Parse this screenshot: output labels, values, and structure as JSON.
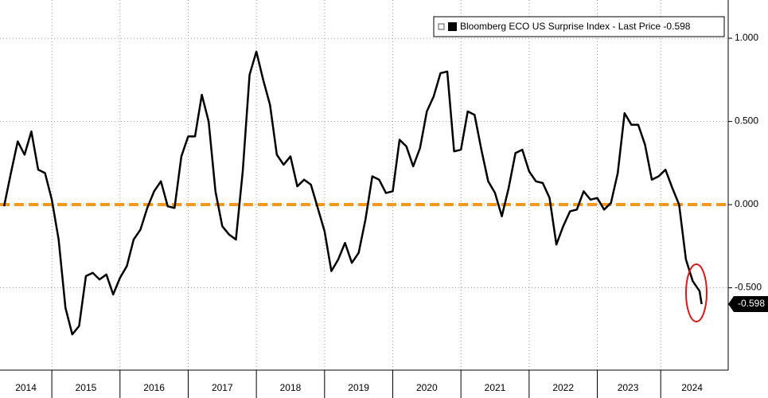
{
  "chart_data": {
    "type": "line",
    "x": [
      2014.3,
      2014.4,
      2014.5,
      2014.6,
      2014.7,
      2014.8,
      2014.9,
      2015.0,
      2015.1,
      2015.2,
      2015.3,
      2015.4,
      2015.5,
      2015.6,
      2015.7,
      2015.8,
      2015.9,
      2016.0,
      2016.1,
      2016.2,
      2016.3,
      2016.4,
      2016.5,
      2016.6,
      2016.7,
      2016.8,
      2016.9,
      2017.0,
      2017.1,
      2017.2,
      2017.3,
      2017.4,
      2017.5,
      2017.6,
      2017.7,
      2017.8,
      2017.9,
      2018.0,
      2018.1,
      2018.2,
      2018.3,
      2018.4,
      2018.5,
      2018.6,
      2018.7,
      2018.8,
      2018.9,
      2019.0,
      2019.1,
      2019.2,
      2019.3,
      2019.4,
      2019.5,
      2019.6,
      2019.7,
      2019.8,
      2019.9,
      2020.0,
      2020.1,
      2020.2,
      2020.3,
      2020.4,
      2020.5,
      2020.6,
      2020.7,
      2020.8,
      2020.9,
      2021.0,
      2021.1,
      2021.2,
      2021.3,
      2021.4,
      2021.5,
      2021.6,
      2021.7,
      2021.8,
      2021.9,
      2022.0,
      2022.1,
      2022.2,
      2022.3,
      2022.4,
      2022.5,
      2022.6,
      2022.7,
      2022.8,
      2022.9,
      2023.0,
      2023.1,
      2023.2,
      2023.3,
      2023.4,
      2023.5,
      2023.6,
      2023.7,
      2023.8,
      2023.9,
      2024.0,
      2024.1,
      2024.2,
      2024.3,
      2024.4,
      2024.5,
      2024.53
    ],
    "series": [
      {
        "name": "Bloomberg ECO US Surprise Index - Last Price -0.598",
        "color": "#000000",
        "values": [
          -0.01,
          0.19,
          0.38,
          0.3,
          0.44,
          0.21,
          0.19,
          0.03,
          -0.21,
          -0.62,
          -0.78,
          -0.73,
          -0.43,
          -0.41,
          -0.45,
          -0.42,
          -0.54,
          -0.44,
          -0.37,
          -0.21,
          -0.15,
          -0.02,
          0.08,
          0.14,
          -0.01,
          -0.02,
          0.29,
          0.41,
          0.41,
          0.66,
          0.5,
          0.08,
          -0.13,
          -0.18,
          -0.21,
          0.2,
          0.78,
          0.92,
          0.75,
          0.6,
          0.3,
          0.24,
          0.29,
          0.11,
          0.15,
          0.12,
          -0.02,
          -0.16,
          -0.4,
          -0.33,
          -0.23,
          -0.35,
          -0.29,
          -0.09,
          0.17,
          0.15,
          0.07,
          0.08,
          0.39,
          0.35,
          0.23,
          0.34,
          0.56,
          0.65,
          0.79,
          0.8,
          0.32,
          0.33,
          0.56,
          0.54,
          0.33,
          0.14,
          0.07,
          -0.07,
          0.1,
          0.31,
          0.33,
          0.2,
          0.14,
          0.13,
          0.04,
          -0.24,
          -0.13,
          -0.04,
          -0.03,
          0.08,
          0.03,
          0.04,
          -0.03,
          0.01,
          0.19,
          0.55,
          0.48,
          0.48,
          0.36,
          0.15,
          0.17,
          0.21,
          0.1,
          0.0,
          -0.33,
          -0.46,
          -0.52,
          -0.598
        ]
      }
    ],
    "xlim": [
      2014.24,
      2024.92
    ],
    "xticks": [
      {
        "value": 2014.62,
        "label": "2014"
      },
      {
        "value": 2015.5,
        "label": "2015"
      },
      {
        "value": 2016.5,
        "label": "2016"
      },
      {
        "value": 2017.5,
        "label": "2017"
      },
      {
        "value": 2018.5,
        "label": "2018"
      },
      {
        "value": 2019.5,
        "label": "2019"
      },
      {
        "value": 2020.5,
        "label": "2020"
      },
      {
        "value": 2021.5,
        "label": "2021"
      },
      {
        "value": 2022.5,
        "label": "2022"
      },
      {
        "value": 2023.45,
        "label": "2023"
      },
      {
        "value": 2024.39,
        "label": "2024"
      }
    ],
    "xgrid": [
      2015,
      2016,
      2017,
      2018,
      2019,
      2020,
      2021,
      2022,
      2023,
      2023.93
    ],
    "ylim": [
      -0.995,
      1.23
    ],
    "yticks": [
      {
        "value": -0.5,
        "label": "-0.500"
      },
      {
        "value": 0,
        "label": "0.000"
      },
      {
        "value": 0.5,
        "label": "0.500"
      },
      {
        "value": 1,
        "label": "1.000"
      }
    ],
    "hline": {
      "value": 0,
      "color": "#f39a1e"
    },
    "grid": true
  }
}
